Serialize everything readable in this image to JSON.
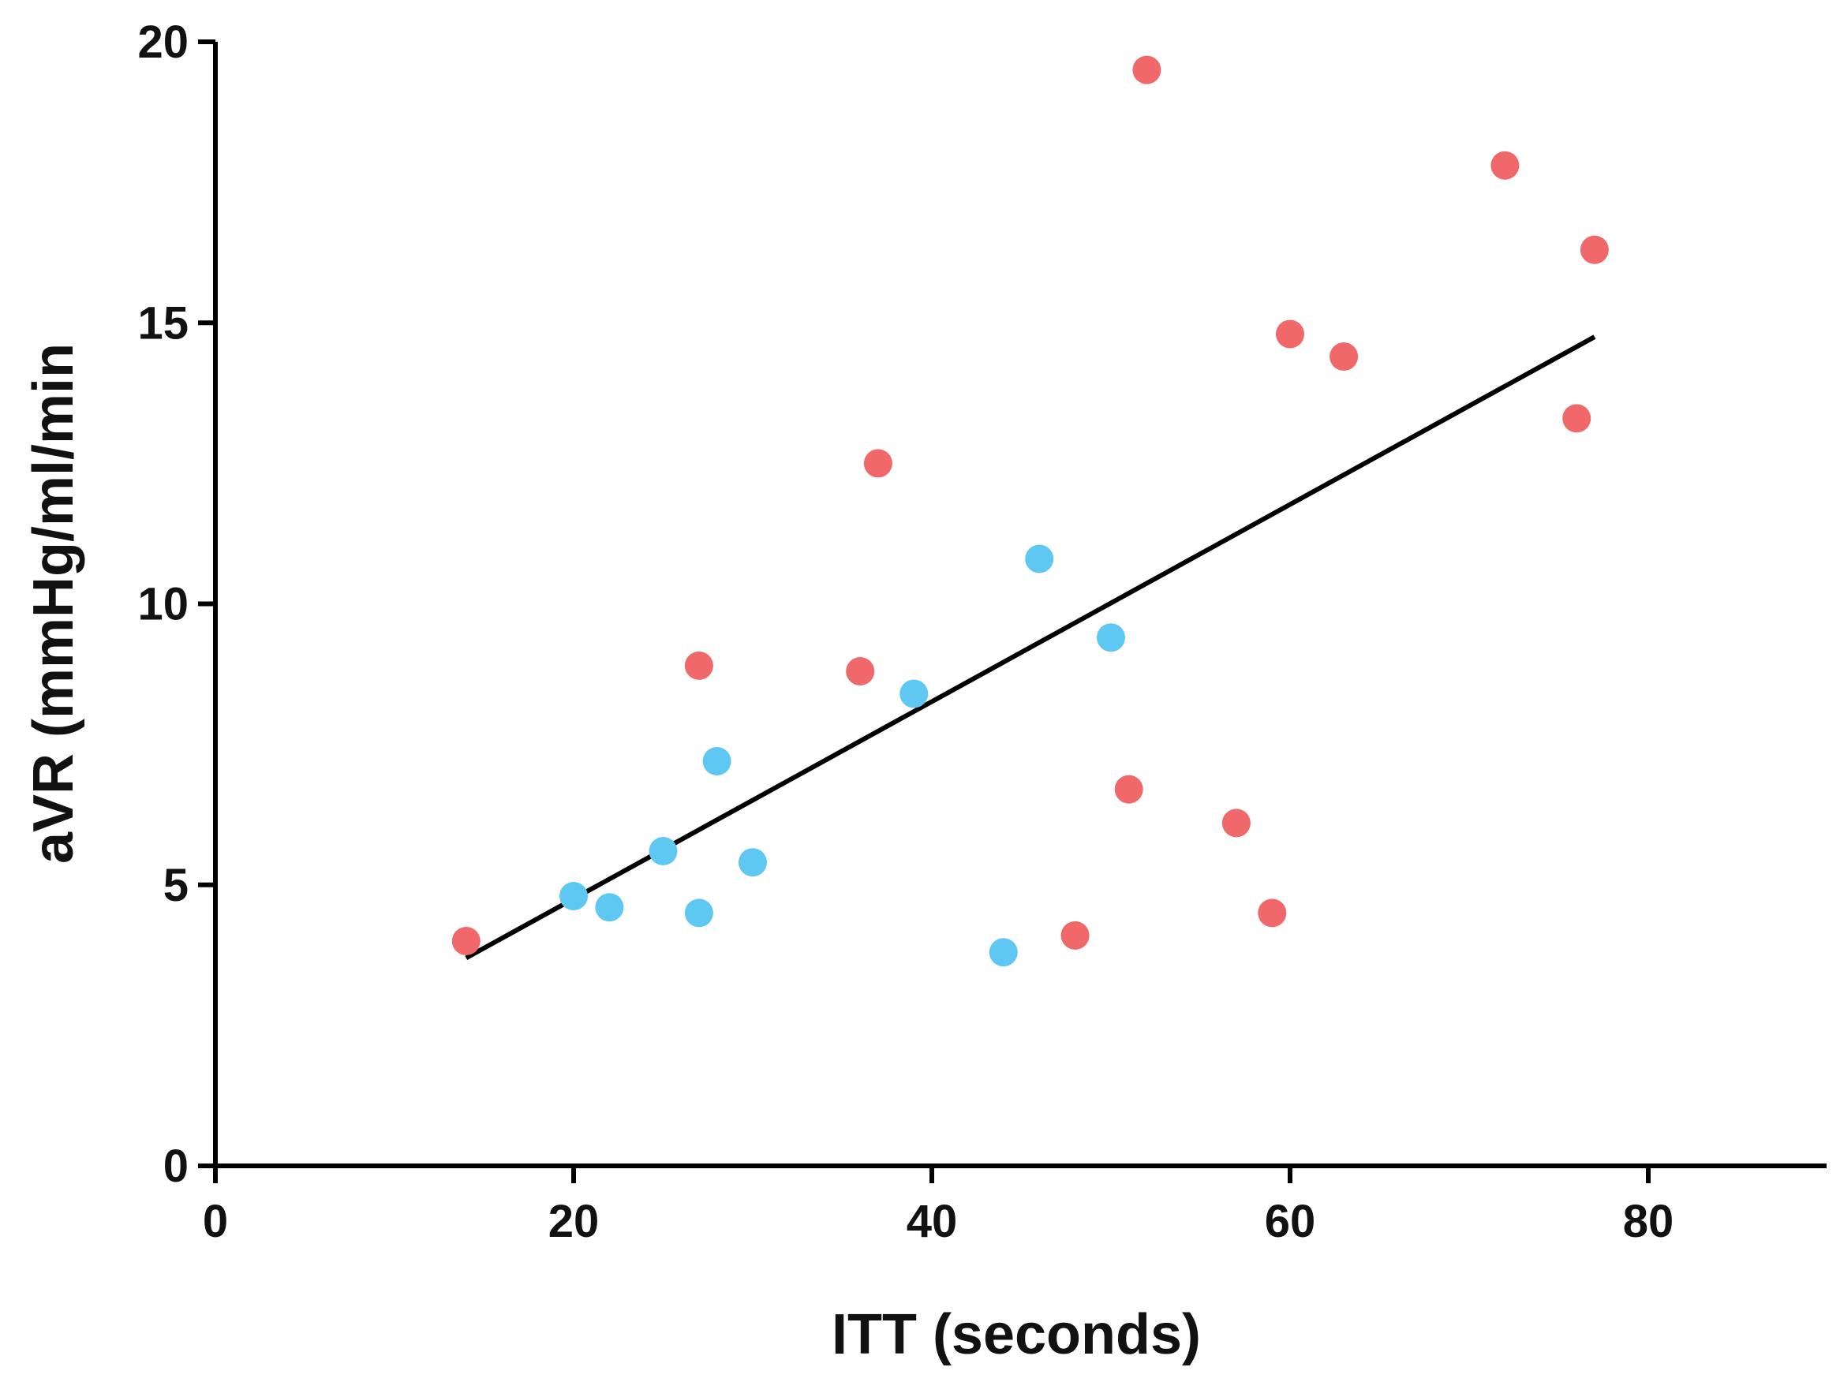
{
  "chart_data": {
    "type": "scatter",
    "title": "",
    "xlabel": "ITT (seconds)",
    "ylabel": "aVR (mmHg/ml/min",
    "xlim": [
      0,
      90
    ],
    "ylim": [
      0,
      20
    ],
    "x_ticks": [
      "0",
      "20",
      "40",
      "60",
      "80"
    ],
    "y_ticks": [
      "0",
      "5",
      "10",
      "15",
      "20"
    ],
    "grid": false,
    "legend": "none",
    "series": [
      {
        "color": "#f0686a",
        "points": [
          {
            "x": 14,
            "y": 4.0
          },
          {
            "x": 27,
            "y": 8.9
          },
          {
            "x": 36,
            "y": 8.8
          },
          {
            "x": 37,
            "y": 12.5
          },
          {
            "x": 48,
            "y": 4.1
          },
          {
            "x": 51,
            "y": 6.7
          },
          {
            "x": 52,
            "y": 19.5
          },
          {
            "x": 57,
            "y": 6.1
          },
          {
            "x": 59,
            "y": 4.5
          },
          {
            "x": 60,
            "y": 14.8
          },
          {
            "x": 63,
            "y": 14.4
          },
          {
            "x": 72,
            "y": 17.8
          },
          {
            "x": 76,
            "y": 13.3
          },
          {
            "x": 77,
            "y": 16.3
          }
        ]
      },
      {
        "color": "#5ec8f2",
        "points": [
          {
            "x": 20,
            "y": 4.8
          },
          {
            "x": 22,
            "y": 4.6
          },
          {
            "x": 25,
            "y": 5.6
          },
          {
            "x": 27,
            "y": 4.5
          },
          {
            "x": 28,
            "y": 7.2
          },
          {
            "x": 30,
            "y": 5.4
          },
          {
            "x": 39,
            "y": 8.4
          },
          {
            "x": 44,
            "y": 3.8
          },
          {
            "x": 46,
            "y": 10.8
          },
          {
            "x": 50,
            "y": 9.4
          }
        ]
      }
    ],
    "fit_line": {
      "color": "#000000",
      "from": {
        "x": 14,
        "y": 3.7
      },
      "to": {
        "x": 77,
        "y": 14.75
      }
    }
  }
}
